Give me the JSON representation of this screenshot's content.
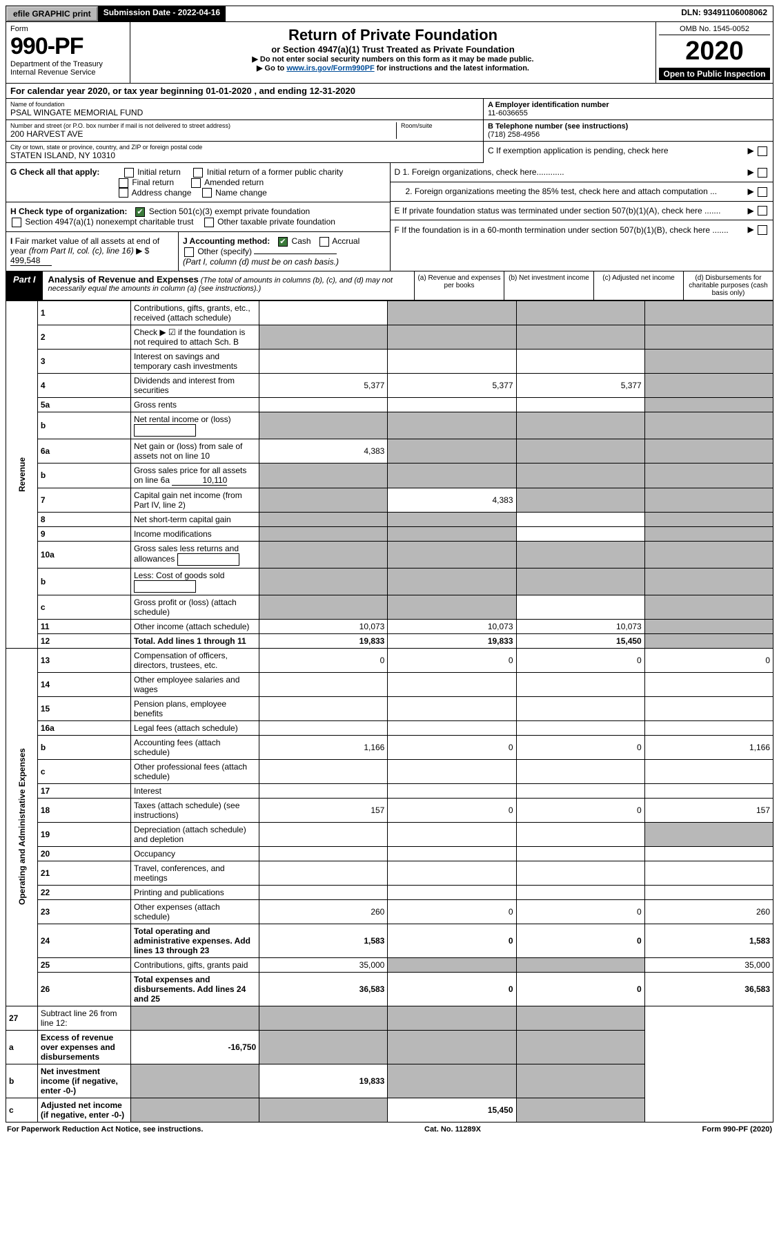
{
  "topbar": {
    "efile": "efile GRAPHIC print",
    "submission": "Submission Date - 2022-04-16",
    "dln": "DLN: 93491106008062"
  },
  "header": {
    "form_label": "Form",
    "form_no": "990-PF",
    "dept": "Department of the Treasury",
    "irs": "Internal Revenue Service",
    "title": "Return of Private Foundation",
    "subtitle": "or Section 4947(a)(1) Trust Treated as Private Foundation",
    "note1": "▶ Do not enter social security numbers on this form as it may be made public.",
    "note2_pre": "▶ Go to ",
    "note2_link": "www.irs.gov/Form990PF",
    "note2_post": " for instructions and the latest information.",
    "omb": "OMB No. 1545-0052",
    "year": "2020",
    "open": "Open to Public Inspection"
  },
  "calyear": "For calendar year 2020, or tax year beginning 01-01-2020               , and ending 12-31-2020",
  "entity": {
    "name_label": "Name of foundation",
    "name": "PSAL WINGATE MEMORIAL FUND",
    "addr_label": "Number and street (or P.O. box number if mail is not delivered to street address)",
    "room_label": "Room/suite",
    "addr": "200 HARVEST AVE",
    "city_label": "City or town, state or province, country, and ZIP or foreign postal code",
    "city": "STATEN ISLAND, NY  10310",
    "ein_label": "A Employer identification number",
    "ein": "11-6036655",
    "phone_label": "B Telephone number (see instructions)",
    "phone": "(718) 258-4956",
    "c": "C If exemption application is pending, check here",
    "d1": "D 1. Foreign organizations, check here............",
    "d2": "2. Foreign organizations meeting the 85% test, check here and attach computation ...",
    "e": "E  If private foundation status was terminated under section 507(b)(1)(A), check here .......",
    "f": "F  If the foundation is in a 60-month termination under section 507(b)(1)(B), check here .......",
    "g_label": "G Check all that apply:",
    "g_opts": [
      "Initial return",
      "Initial return of a former public charity",
      "Final return",
      "Amended return",
      "Address change",
      "Name change"
    ],
    "h_label": "H Check type of organization:",
    "h1": "Section 501(c)(3) exempt private foundation",
    "h2": "Section 4947(a)(1) nonexempt charitable trust",
    "h3": "Other taxable private foundation",
    "i_label": "I Fair market value of all assets at end of year (from Part II, col. (c), line 16) ▶ $",
    "i_val": "499,548",
    "j_label": "J Accounting method:",
    "j_cash": "Cash",
    "j_accrual": "Accrual",
    "j_other": "Other (specify)",
    "j_note": "(Part I, column (d) must be on cash basis.)"
  },
  "part1": {
    "label": "Part I",
    "title": "Analysis of Revenue and Expenses",
    "note": " (The total of amounts in columns (b), (c), and (d) may not necessarily equal the amounts in column (a) (see instructions).)",
    "col_a": "(a)   Revenue and expenses per books",
    "col_b": "(b)   Net investment income",
    "col_c": "(c)   Adjusted net income",
    "col_d": "(d)   Disbursements for charitable purposes (cash basis only)"
  },
  "rows": [
    {
      "no": "1",
      "desc": "Contributions, gifts, grants, etc., received (attach schedule)",
      "a": "",
      "b": "grey",
      "c": "grey",
      "d": "grey"
    },
    {
      "no": "2",
      "desc": "Check ▶ ☑ if the foundation is not required to attach Sch. B",
      "a": "grey",
      "b": "grey",
      "c": "grey",
      "d": "grey"
    },
    {
      "no": "3",
      "desc": "Interest on savings and temporary cash investments",
      "a": "",
      "b": "",
      "c": "",
      "d": "grey"
    },
    {
      "no": "4",
      "desc": "Dividends and interest from securities",
      "a": "5,377",
      "b": "5,377",
      "c": "5,377",
      "d": "grey"
    },
    {
      "no": "5a",
      "desc": "Gross rents",
      "a": "",
      "b": "",
      "c": "",
      "d": "grey"
    },
    {
      "no": "b",
      "desc": "Net rental income or (loss)",
      "a": "grey",
      "b": "grey",
      "c": "grey",
      "d": "grey",
      "inbox": true
    },
    {
      "no": "6a",
      "desc": "Net gain or (loss) from sale of assets not on line 10",
      "a": "4,383",
      "b": "grey",
      "c": "grey",
      "d": "grey"
    },
    {
      "no": "b",
      "desc": "Gross sales price for all assets on line 6a",
      "a": "grey",
      "b": "grey",
      "c": "grey",
      "d": "grey",
      "inval": "10,110"
    },
    {
      "no": "7",
      "desc": "Capital gain net income (from Part IV, line 2)",
      "a": "grey",
      "b": "4,383",
      "c": "grey",
      "d": "grey"
    },
    {
      "no": "8",
      "desc": "Net short-term capital gain",
      "a": "grey",
      "b": "grey",
      "c": "",
      "d": "grey"
    },
    {
      "no": "9",
      "desc": "Income modifications",
      "a": "grey",
      "b": "grey",
      "c": "",
      "d": "grey"
    },
    {
      "no": "10a",
      "desc": "Gross sales less returns and allowances",
      "a": "grey",
      "b": "grey",
      "c": "grey",
      "d": "grey",
      "inbox": true
    },
    {
      "no": "b",
      "desc": "Less: Cost of goods sold",
      "a": "grey",
      "b": "grey",
      "c": "grey",
      "d": "grey",
      "inbox": true
    },
    {
      "no": "c",
      "desc": "Gross profit or (loss) (attach schedule)",
      "a": "grey",
      "b": "grey",
      "c": "",
      "d": "grey"
    },
    {
      "no": "11",
      "desc": "Other income (attach schedule)",
      "a": "10,073",
      "b": "10,073",
      "c": "10,073",
      "d": "grey"
    },
    {
      "no": "12",
      "desc": "Total. Add lines 1 through 11",
      "a": "19,833",
      "b": "19,833",
      "c": "15,450",
      "d": "grey",
      "bold": true
    }
  ],
  "exp_rows": [
    {
      "no": "13",
      "desc": "Compensation of officers, directors, trustees, etc.",
      "a": "0",
      "b": "0",
      "c": "0",
      "d": "0"
    },
    {
      "no": "14",
      "desc": "Other employee salaries and wages",
      "a": "",
      "b": "",
      "c": "",
      "d": ""
    },
    {
      "no": "15",
      "desc": "Pension plans, employee benefits",
      "a": "",
      "b": "",
      "c": "",
      "d": ""
    },
    {
      "no": "16a",
      "desc": "Legal fees (attach schedule)",
      "a": "",
      "b": "",
      "c": "",
      "d": ""
    },
    {
      "no": "b",
      "desc": "Accounting fees (attach schedule)",
      "a": "1,166",
      "b": "0",
      "c": "0",
      "d": "1,166"
    },
    {
      "no": "c",
      "desc": "Other professional fees (attach schedule)",
      "a": "",
      "b": "",
      "c": "",
      "d": ""
    },
    {
      "no": "17",
      "desc": "Interest",
      "a": "",
      "b": "",
      "c": "",
      "d": ""
    },
    {
      "no": "18",
      "desc": "Taxes (attach schedule) (see instructions)",
      "a": "157",
      "b": "0",
      "c": "0",
      "d": "157"
    },
    {
      "no": "19",
      "desc": "Depreciation (attach schedule) and depletion",
      "a": "",
      "b": "",
      "c": "",
      "d": "grey"
    },
    {
      "no": "20",
      "desc": "Occupancy",
      "a": "",
      "b": "",
      "c": "",
      "d": ""
    },
    {
      "no": "21",
      "desc": "Travel, conferences, and meetings",
      "a": "",
      "b": "",
      "c": "",
      "d": ""
    },
    {
      "no": "22",
      "desc": "Printing and publications",
      "a": "",
      "b": "",
      "c": "",
      "d": ""
    },
    {
      "no": "23",
      "desc": "Other expenses (attach schedule)",
      "a": "260",
      "b": "0",
      "c": "0",
      "d": "260"
    },
    {
      "no": "24",
      "desc": "Total operating and administrative expenses. Add lines 13 through 23",
      "a": "1,583",
      "b": "0",
      "c": "0",
      "d": "1,583",
      "bold": true
    },
    {
      "no": "25",
      "desc": "Contributions, gifts, grants paid",
      "a": "35,000",
      "b": "grey",
      "c": "grey",
      "d": "35,000"
    },
    {
      "no": "26",
      "desc": "Total expenses and disbursements. Add lines 24 and 25",
      "a": "36,583",
      "b": "0",
      "c": "0",
      "d": "36,583",
      "bold": true
    }
  ],
  "net_rows": [
    {
      "no": "27",
      "desc": "Subtract line 26 from line 12:",
      "a": "grey",
      "b": "grey",
      "c": "grey",
      "d": "grey"
    },
    {
      "no": "a",
      "desc": "Excess of revenue over expenses and disbursements",
      "a": "-16,750",
      "b": "grey",
      "c": "grey",
      "d": "grey",
      "bold": true
    },
    {
      "no": "b",
      "desc": "Net investment income (if negative, enter -0-)",
      "a": "grey",
      "b": "19,833",
      "c": "grey",
      "d": "grey",
      "bold": true
    },
    {
      "no": "c",
      "desc": "Adjusted net income (if negative, enter -0-)",
      "a": "grey",
      "b": "grey",
      "c": "15,450",
      "d": "grey",
      "bold": true
    }
  ],
  "section_labels": {
    "revenue": "Revenue",
    "expenses": "Operating and Administrative Expenses"
  },
  "footer": {
    "left": "For Paperwork Reduction Act Notice, see instructions.",
    "mid": "Cat. No. 11289X",
    "right": "Form 990-PF (2020)"
  }
}
